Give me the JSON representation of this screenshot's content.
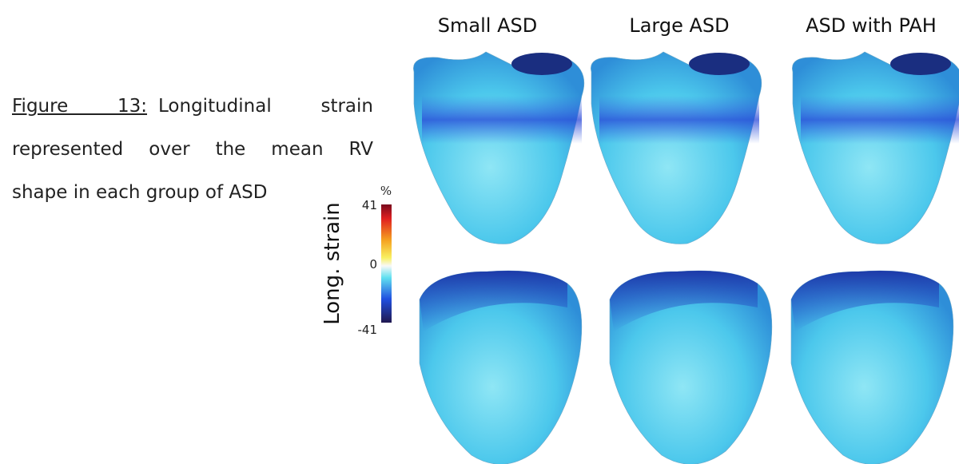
{
  "caption": {
    "label": "Figure 13:",
    "lines": [
      "Longitudinal strain",
      "represented over the mean RV",
      "shape in each group of ASD"
    ]
  },
  "columns": [
    "Small ASD",
    "Large ASD",
    "ASD with PAH"
  ],
  "colorbar": {
    "title": "Long. strain",
    "unit": "%",
    "ticks": [
      41,
      0,
      -41
    ]
  }
}
